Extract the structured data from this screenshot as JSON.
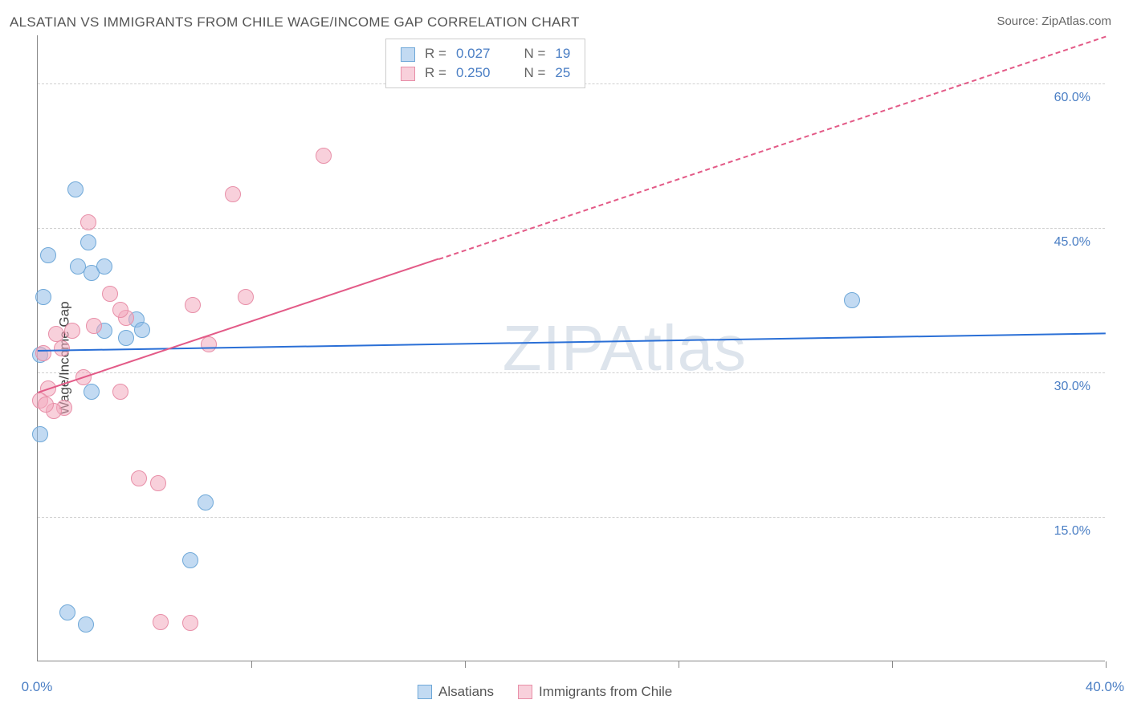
{
  "title": "ALSATIAN VS IMMIGRANTS FROM CHILE WAGE/INCOME GAP CORRELATION CHART",
  "source_label": "Source: ZipAtlas.com",
  "y_axis_label": "Wage/Income Gap",
  "watermark": "ZIPAtlas",
  "chart": {
    "type": "scatter-correlation",
    "xlim": [
      0,
      40
    ],
    "ylim": [
      0,
      65
    ],
    "x_ticks": [
      0,
      8,
      16,
      24,
      32,
      40
    ],
    "x_tick_labels": [
      "0.0%",
      "",
      "",
      "",
      "",
      "40.0%"
    ],
    "y_gridlines": [
      15,
      30,
      45,
      60
    ],
    "y_tick_labels": [
      "15.0%",
      "30.0%",
      "45.0%",
      "60.0%"
    ],
    "background_color": "#ffffff",
    "grid_color": "#d0d0d0",
    "axis_color": "#888888",
    "tick_label_color": "#4a7ec4",
    "point_radius": 9,
    "series": [
      {
        "name": "Alsatians",
        "color_fill": "rgba(144,188,232,0.55)",
        "color_stroke": "#6fa8d8",
        "R": "0.027",
        "N": "19",
        "trend": {
          "y_at_x0": 32.3,
          "y_at_x40": 34.1,
          "color": "#2a6fd6",
          "extrapolate_from_x": 40
        },
        "points": [
          [
            0.4,
            42.2
          ],
          [
            1.4,
            49.0
          ],
          [
            1.5,
            41.0
          ],
          [
            1.9,
            43.5
          ],
          [
            2.0,
            40.3
          ],
          [
            2.5,
            41.0
          ],
          [
            0.2,
            37.8
          ],
          [
            2.5,
            34.3
          ],
          [
            3.7,
            35.5
          ],
          [
            3.3,
            33.6
          ],
          [
            0.1,
            23.6
          ],
          [
            6.3,
            16.5
          ],
          [
            5.7,
            10.5
          ],
          [
            1.1,
            5.1
          ],
          [
            1.8,
            3.8
          ],
          [
            3.9,
            34.4
          ],
          [
            0.1,
            31.8
          ],
          [
            30.5,
            37.5
          ],
          [
            2.0,
            28.0
          ]
        ]
      },
      {
        "name": "Immigrants from Chile",
        "color_fill": "rgba(242,170,190,0.55)",
        "color_stroke": "#e88fa8",
        "R": "0.250",
        "N": "25",
        "trend": {
          "y_at_x0": 28.0,
          "y_at_x40": 65.0,
          "color": "#e35a87",
          "extrapolate_from_x": 15
        },
        "points": [
          [
            10.7,
            52.5
          ],
          [
            7.3,
            48.5
          ],
          [
            1.9,
            45.6
          ],
          [
            2.7,
            38.2
          ],
          [
            5.8,
            37.0
          ],
          [
            7.8,
            37.8
          ],
          [
            3.3,
            35.7
          ],
          [
            2.1,
            34.8
          ],
          [
            1.3,
            34.3
          ],
          [
            0.9,
            32.5
          ],
          [
            0.2,
            32.0
          ],
          [
            0.4,
            28.3
          ],
          [
            0.1,
            27.1
          ],
          [
            1.0,
            26.3
          ],
          [
            0.6,
            26.0
          ],
          [
            0.3,
            26.7
          ],
          [
            1.7,
            29.5
          ],
          [
            3.1,
            28.0
          ],
          [
            6.4,
            32.9
          ],
          [
            3.8,
            19.0
          ],
          [
            4.5,
            18.5
          ],
          [
            4.6,
            4.1
          ],
          [
            5.7,
            4.0
          ],
          [
            0.7,
            34.0
          ],
          [
            3.1,
            36.5
          ]
        ]
      }
    ]
  },
  "legend_top": {
    "rows": [
      {
        "swatch_fill": "rgba(144,188,232,0.55)",
        "swatch_stroke": "#6fa8d8",
        "r_label": "R =",
        "r_value": "0.027",
        "n_label": "N =",
        "n_value": "19"
      },
      {
        "swatch_fill": "rgba(242,170,190,0.55)",
        "swatch_stroke": "#e88fa8",
        "r_label": "R =",
        "r_value": "0.250",
        "n_label": "N =",
        "n_value": "25"
      }
    ]
  },
  "legend_bottom": {
    "items": [
      {
        "swatch_fill": "rgba(144,188,232,0.55)",
        "swatch_stroke": "#6fa8d8",
        "label": "Alsatians"
      },
      {
        "swatch_fill": "rgba(242,170,190,0.55)",
        "swatch_stroke": "#e88fa8",
        "label": "Immigrants from Chile"
      }
    ]
  }
}
